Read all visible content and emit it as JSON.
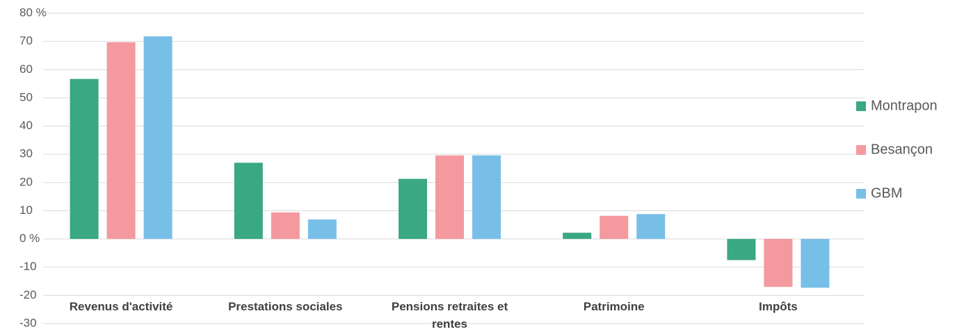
{
  "chart_data": {
    "type": "bar",
    "categories": [
      "Revenus d'activité",
      "Prestations sociales",
      "Pensions retraites et rentes",
      "Patrimoine",
      "Impôts"
    ],
    "series": [
      {
        "name": "Montrapon",
        "color": "#3aa882",
        "values": [
          56.7,
          27,
          21.3,
          2.2,
          -7.5
        ]
      },
      {
        "name": "Besançon",
        "color": "#f4999e",
        "values": [
          69.7,
          9.4,
          29.6,
          8.2,
          -17
        ]
      },
      {
        "name": "GBM",
        "color": "#78bfe8",
        "values": [
          71.8,
          6.9,
          29.6,
          8.8,
          -17.3
        ]
      }
    ],
    "ylim": [
      -30,
      80
    ],
    "yticks": [
      {
        "value": 80,
        "label": "80 %"
      },
      70,
      60,
      50,
      40,
      30,
      20,
      10,
      {
        "value": 0,
        "label": "0 %"
      },
      -10,
      -20,
      -30
    ],
    "grid": true,
    "legend": "right"
  }
}
